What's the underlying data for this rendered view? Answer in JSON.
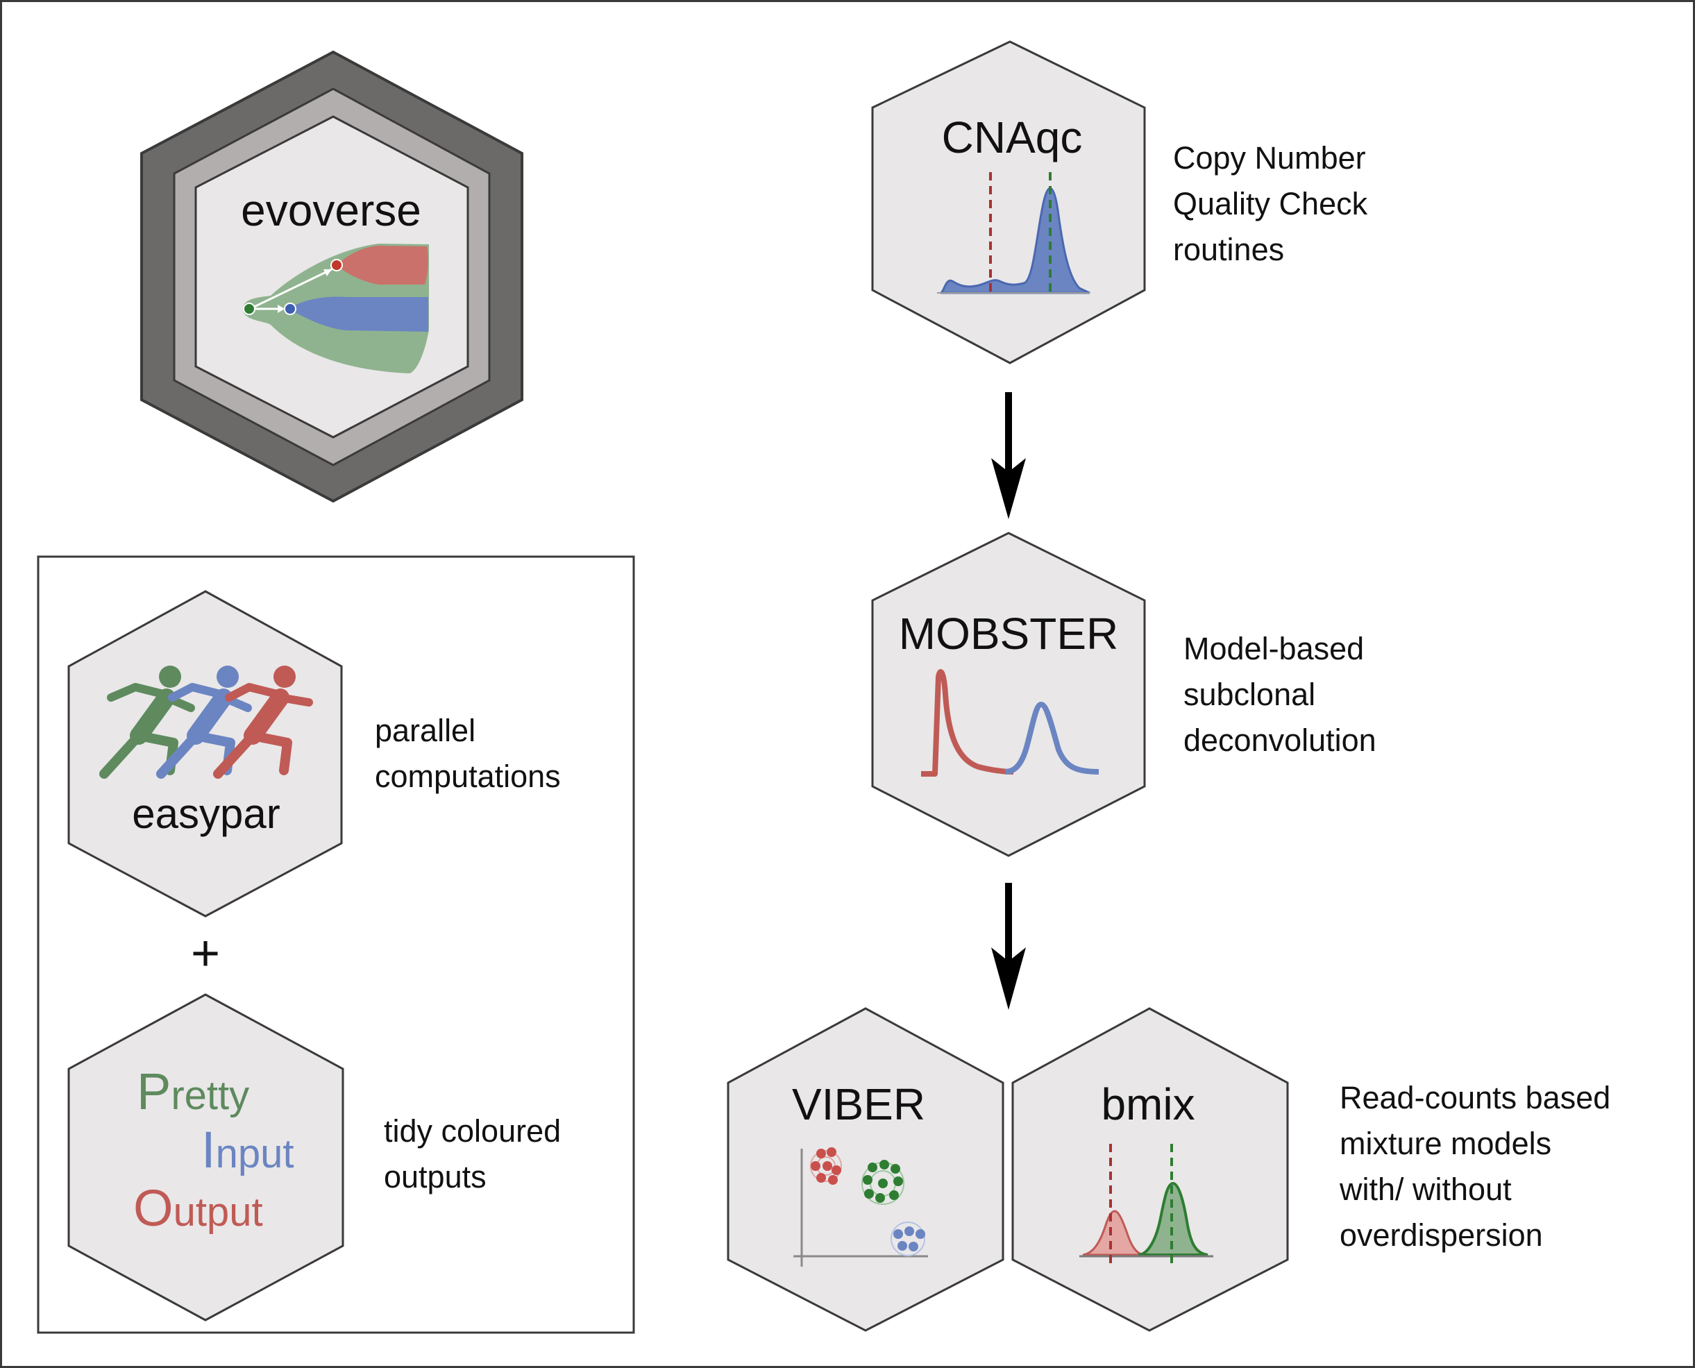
{
  "colors": {
    "green": "#5e8a5e",
    "green_light": "#8fb38f",
    "blue": "#6b85c2",
    "red": "#c05a55",
    "red_light": "#c9716a",
    "dark_green": "#2e7d32",
    "dark_red": "#a83232",
    "hex_fill": "#e9e7e8",
    "hex_outer": "#6c6a69",
    "hex_middle": "#b3aeae",
    "border": "#3a3a3a"
  },
  "evoverse": {
    "title": "evoverse"
  },
  "cnaqc": {
    "title": "CNAqc",
    "description": [
      "Copy Number",
      "Quality Check",
      "routines"
    ]
  },
  "mobster": {
    "title": "MOBSTER",
    "description": [
      "Model-based",
      "subclonal",
      "deconvolution"
    ]
  },
  "viber": {
    "title": "VIBER"
  },
  "bmix": {
    "title": "bmix"
  },
  "mixture_description": [
    "Read-counts based",
    "mixture models",
    "with/ without",
    "overdispersion"
  ],
  "easypar": {
    "title": "easypar",
    "description": [
      "parallel",
      "computations"
    ]
  },
  "plus_sign": "+",
  "pio": {
    "lines": [
      {
        "initial": "P",
        "rest": "retty"
      },
      {
        "initial": "I",
        "rest": "nput"
      },
      {
        "initial": "O",
        "rest": "utput"
      }
    ],
    "description": [
      "tidy coloured",
      "outputs"
    ]
  }
}
